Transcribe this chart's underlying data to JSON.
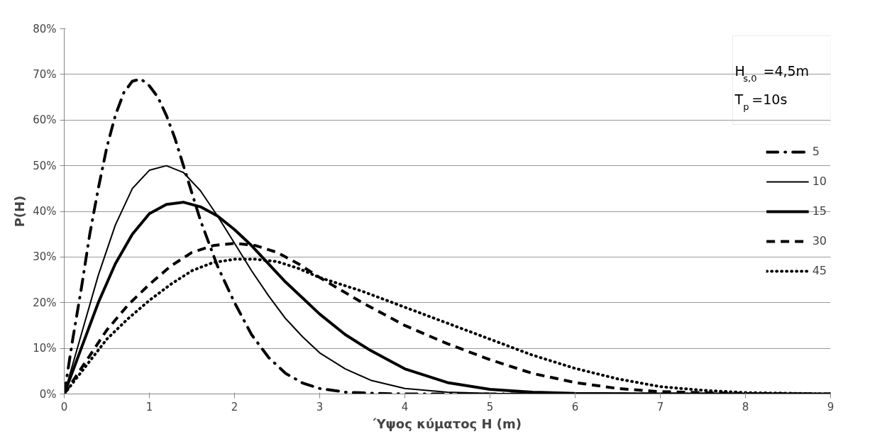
{
  "chart_data": {
    "type": "line",
    "xlabel": "Ύψος κύματος H (m)",
    "ylabel": "P(H)",
    "annotations": [
      "H$_{s,0}$=4,5m",
      "T$_{p}$=10s"
    ],
    "xlim": [
      0,
      9
    ],
    "xticks": [
      0,
      1,
      2,
      3,
      4,
      5,
      6,
      7,
      8,
      9
    ],
    "ylim": [
      0,
      80
    ],
    "yticks": [
      {
        "value": 0,
        "label": "0%"
      },
      {
        "value": 10,
        "label": "10%"
      },
      {
        "value": 20,
        "label": "20%"
      },
      {
        "value": 30,
        "label": "30%"
      },
      {
        "value": 40,
        "label": "40%"
      },
      {
        "value": 50,
        "label": "50%"
      },
      {
        "value": 60,
        "label": "60%"
      },
      {
        "value": 70,
        "label": "70%"
      },
      {
        "value": 80,
        "label": "80%"
      }
    ],
    "grid": "y",
    "legend": "right",
    "marker": "none",
    "series": [
      {
        "name": "5",
        "color": "#000000",
        "line_style": "dashdot",
        "x": [
          0,
          0.1,
          0.2,
          0.3,
          0.4,
          0.5,
          0.6,
          0.7,
          0.8,
          0.9,
          1.0,
          1.1,
          1.2,
          1.3,
          1.4,
          1.5,
          1.6,
          1.8,
          2.0,
          2.2,
          2.4,
          2.6,
          2.8,
          3.0,
          3.3,
          3.7,
          4.0,
          5,
          6,
          7,
          8,
          9
        ],
        "values": [
          0,
          12,
          23,
          35,
          45,
          54,
          61,
          66,
          68.5,
          69,
          67.5,
          65,
          61,
          56,
          50,
          44,
          38,
          28,
          20,
          13,
          8,
          4.5,
          2.4,
          1.2,
          0.4,
          0.1,
          0,
          0,
          0,
          0,
          0,
          0
        ]
      },
      {
        "name": "10",
        "color": "#000000",
        "line_style": "solid",
        "x": [
          0,
          0.2,
          0.4,
          0.6,
          0.8,
          1.0,
          1.2,
          1.4,
          1.6,
          1.8,
          2.0,
          2.2,
          2.4,
          2.6,
          2.8,
          3.0,
          3.3,
          3.6,
          4.0,
          4.5,
          5,
          6,
          7,
          8,
          9
        ],
        "values": [
          0,
          13,
          26,
          37,
          45,
          49,
          50,
          48.5,
          44.5,
          39,
          33,
          27,
          21.5,
          16.5,
          12.5,
          9,
          5.5,
          3,
          1.2,
          0.4,
          0.1,
          0,
          0,
          0,
          0
        ]
      },
      {
        "name": "15",
        "color": "#000000",
        "line_style": "solid",
        "x": [
          0,
          0.2,
          0.4,
          0.6,
          0.8,
          1.0,
          1.2,
          1.4,
          1.6,
          1.8,
          2.0,
          2.2,
          2.4,
          2.6,
          2.8,
          3.0,
          3.3,
          3.6,
          4.0,
          4.5,
          5,
          5.5,
          6,
          7,
          8,
          9
        ],
        "values": [
          0,
          10,
          20,
          28.5,
          35,
          39.5,
          41.5,
          42,
          41,
          39,
          36,
          32.5,
          28.5,
          24.5,
          21,
          17.5,
          13,
          9.5,
          5.5,
          2.5,
          1,
          0.4,
          0.1,
          0,
          0,
          0
        ]
      },
      {
        "name": "30",
        "color": "#000000",
        "line_style": "dashed",
        "x": [
          0,
          0.25,
          0.5,
          0.75,
          1.0,
          1.25,
          1.5,
          1.75,
          2.0,
          2.25,
          2.5,
          2.75,
          3.0,
          3.5,
          4.0,
          4.5,
          5.0,
          5.5,
          6.0,
          6.5,
          7,
          8,
          8.8
        ],
        "values": [
          0,
          7,
          14,
          19.5,
          24,
          28,
          31,
          32.5,
          33,
          32.5,
          31,
          28.5,
          25.5,
          20,
          15,
          11,
          7.5,
          4.5,
          2.5,
          1.2,
          0.5,
          0.1,
          0
        ]
      },
      {
        "name": "45",
        "color": "#000000",
        "line_style": "dotted",
        "x": [
          0,
          0.25,
          0.5,
          0.75,
          1.0,
          1.25,
          1.5,
          1.75,
          2.0,
          2.25,
          2.5,
          2.75,
          3.0,
          3.5,
          4.0,
          4.5,
          5.0,
          5.5,
          6.0,
          6.5,
          7,
          7.5,
          8,
          9
        ],
        "values": [
          0,
          6,
          12,
          16.5,
          20.5,
          24,
          27,
          28.8,
          29.5,
          29.5,
          29,
          27.5,
          25.5,
          22.5,
          19,
          15.5,
          12,
          8.5,
          5.6,
          3.3,
          1.6,
          0.8,
          0.3,
          0
        ]
      }
    ]
  }
}
